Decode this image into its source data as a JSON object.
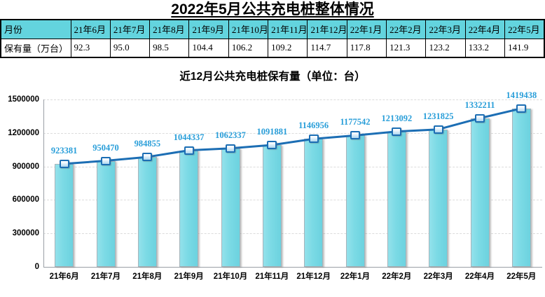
{
  "page": {
    "title": "2022年5月公共充电桩整体情况"
  },
  "table": {
    "header_bg": "#63D4DE",
    "rows": [
      [
        "月份",
        "21年6月",
        "21年7月",
        "21年8月",
        "21年9月",
        "21年10月",
        "21年11月",
        "21年12月",
        "22年1月",
        "22年2月",
        "22年3月",
        "22年4月",
        "22年5月"
      ],
      [
        "保有量（万台）",
        "92.3",
        "95.0",
        "98.5",
        "104.4",
        "106.2",
        "109.2",
        "114.7",
        "117.8",
        "121.3",
        "123.2",
        "133.2",
        "141.9"
      ]
    ]
  },
  "chart_data": {
    "type": "bar",
    "overlay_line": true,
    "title": "近12月公共充电桩保有量（单位：台）",
    "categories": [
      "21年6月",
      "21年7月",
      "21年8月",
      "21年9月",
      "21年10月",
      "21年11月",
      "21年12月",
      "22年1月",
      "22年2月",
      "22年3月",
      "22年4月",
      "22年5月"
    ],
    "values": [
      923381,
      950470,
      984855,
      1044337,
      1062337,
      1091881,
      1146956,
      1177542,
      1213092,
      1231825,
      1332211,
      1419438
    ],
    "data_labels": [
      "923381",
      "950470",
      "984855",
      "1044337",
      "1062337",
      "1091881",
      "1146956",
      "1177542",
      "1213092",
      "1231825",
      "1332211",
      "1419438"
    ],
    "ylim": [
      0,
      1500000
    ],
    "ytick_step": 300000,
    "ytick_labels": [
      "0",
      "300000",
      "600000",
      "900000",
      "1200000",
      "1500000"
    ],
    "grid": true,
    "legend": "none",
    "colors": {
      "bar": "#7BDAE5",
      "bar_border": "#A7B4BA",
      "line": "#1C6EB4",
      "marker_border": "#1C6EB4",
      "data_label": "#299ED9"
    }
  }
}
